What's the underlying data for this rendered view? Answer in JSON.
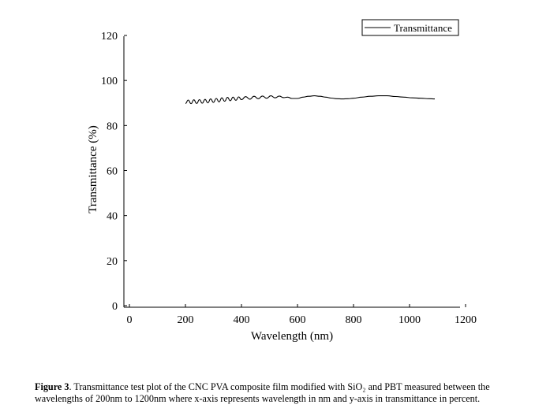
{
  "chart_data": {
    "type": "line",
    "xlabel": "Wavelength (nm)",
    "ylabel": "Transmittance (%)",
    "xlim": [
      0,
      1200
    ],
    "ylim": [
      0,
      120
    ],
    "xticks": [
      0,
      200,
      400,
      600,
      800,
      1000,
      1200
    ],
    "yticks": [
      0,
      20,
      40,
      60,
      80,
      100,
      120
    ],
    "grid": false,
    "legend_position": "top-right",
    "series": [
      {
        "name": "Transmittance",
        "x_range": [
          200,
          1090
        ],
        "x": [
          200,
          210,
          220,
          230,
          240,
          250,
          260,
          270,
          280,
          290,
          300,
          310,
          320,
          330,
          340,
          350,
          360,
          370,
          380,
          390,
          400,
          415,
          430,
          445,
          460,
          475,
          490,
          505,
          520,
          535,
          550,
          565,
          580,
          600,
          620,
          640,
          660,
          680,
          700,
          720,
          740,
          760,
          780,
          800,
          830,
          860,
          890,
          920,
          950,
          980,
          1010,
          1040,
          1070,
          1090
        ],
        "y": [
          89.8,
          91.3,
          89.7,
          91.4,
          89.8,
          91.5,
          89.9,
          91.6,
          90.1,
          91.8,
          90.3,
          92.0,
          90.5,
          92.3,
          90.8,
          92.5,
          91.0,
          92.6,
          91.2,
          92.7,
          91.5,
          92.8,
          91.7,
          93.0,
          91.9,
          93.1,
          92.1,
          93.2,
          92.3,
          93.1,
          92.4,
          92.6,
          92.0,
          92.0,
          92.6,
          93.0,
          93.2,
          93.0,
          92.6,
          92.2,
          91.9,
          91.8,
          91.9,
          92.1,
          92.6,
          93.0,
          93.2,
          93.2,
          92.9,
          92.6,
          92.3,
          92.1,
          91.9,
          91.8
        ]
      }
    ]
  },
  "legend": {
    "label": "Transmittance"
  },
  "caption": {
    "label": "Figure 3",
    "text": ". Transmittance test plot of the CNC PVA composite film modified with SiO₂ and PBT measured between the wavelengths of 200nm to 1200nm where x-axis represents wavelength in nm and y-axis in transmittance in percent."
  }
}
